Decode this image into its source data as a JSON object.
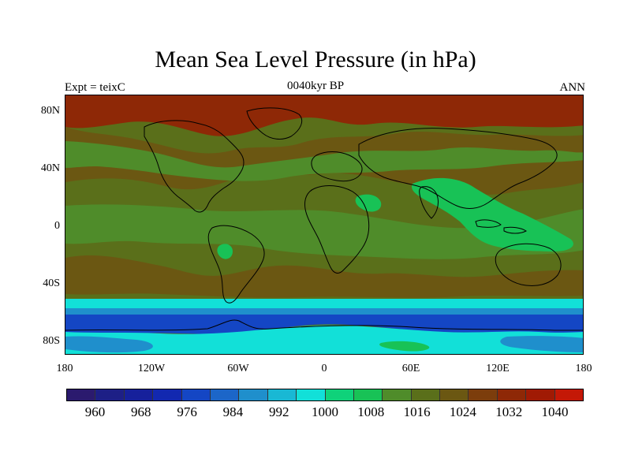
{
  "title": "Mean Sea Level Pressure (in hPa)",
  "subtitle_left": "Expt = teixC",
  "subtitle_center": "0040kyr BP",
  "subtitle_right": "ANN",
  "y_ticks": [
    "80N",
    "40N",
    "0",
    "40S",
    "80S"
  ],
  "x_ticks": [
    "180",
    "120W",
    "60W",
    "0",
    "60E",
    "120E",
    "180"
  ],
  "legend": {
    "colors": [
      "#2b1a6e",
      "#1d1f86",
      "#16209b",
      "#1228b0",
      "#1446c4",
      "#1c66c8",
      "#1f8fcc",
      "#19b8d4",
      "#12e0d8",
      "#0fd27a",
      "#18c256",
      "#4f8c2a",
      "#5a6f1a",
      "#6b5712",
      "#7c3d0c",
      "#8e2806",
      "#a01a04",
      "#c41806"
    ],
    "labels": [
      "960",
      "968",
      "976",
      "984",
      "992",
      "1000",
      "1008",
      "1016",
      "1024",
      "1032",
      "1040"
    ]
  },
  "map_colors": {
    "land_bg": "#5a6f1a",
    "mid_green": "#4f8c2a",
    "high_brown": "#6b5712",
    "arctic": "#8e2806",
    "bright_green": "#18c256",
    "cyan": "#12e0d8",
    "light_blue": "#1f8fcc",
    "blue": "#1446c4",
    "coast": "#000000"
  }
}
